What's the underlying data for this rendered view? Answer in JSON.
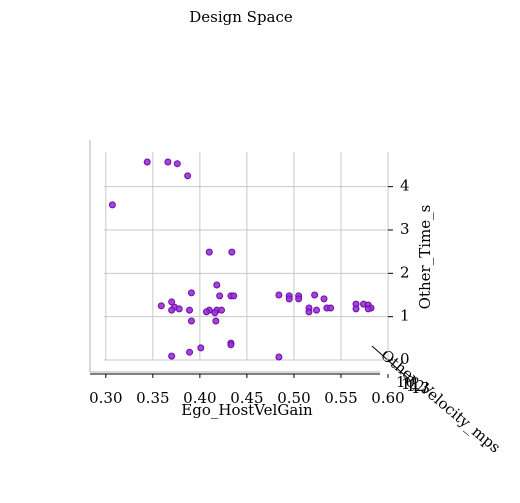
{
  "chart_data": {
    "type": "scatter",
    "title": "Design Space",
    "xlabel": "Ego_HostVelGain",
    "ylabel": "Other_Time_s",
    "depth_label": "Other_Velocity_mps",
    "color": "#9b30d0",
    "edgecolor": "#6a0dad",
    "grid": true,
    "xlim": [
      0.28,
      0.6
    ],
    "ylim": [
      0,
      4.8
    ],
    "xticks": [
      {
        "value": 0.3,
        "label": "0.30"
      },
      {
        "value": 0.35,
        "label": "0.35"
      },
      {
        "value": 0.4,
        "label": "0.40"
      },
      {
        "value": 0.45,
        "label": "0.45"
      },
      {
        "value": 0.5,
        "label": "0.50"
      },
      {
        "value": 0.55,
        "label": "0.55"
      },
      {
        "value": 0.6,
        "label": "0.60"
      }
    ],
    "yticks": [
      0,
      1,
      2,
      3,
      4
    ],
    "depth_ticks": [
      10,
      11,
      12,
      13
    ],
    "x": [
      0.344,
      0.366,
      0.376,
      0.387,
      0.307,
      0.41,
      0.434,
      0.418,
      0.391,
      0.421,
      0.433,
      0.436,
      0.359,
      0.37,
      0.373,
      0.378,
      0.389,
      0.37,
      0.41,
      0.418,
      0.423,
      0.407,
      0.416,
      0.391,
      0.417,
      0.433,
      0.433,
      0.401,
      0.389,
      0.37,
      0.484,
      0.484,
      0.495,
      0.495,
      0.505,
      0.505,
      0.522,
      0.532,
      0.516,
      0.516,
      0.524,
      0.535,
      0.539,
      0.566,
      0.566,
      0.574,
      0.579,
      0.582,
      0.579
    ],
    "y": [
      4.57,
      4.57,
      4.53,
      4.25,
      3.58,
      2.49,
      2.49,
      1.73,
      1.55,
      1.48,
      1.48,
      1.48,
      1.25,
      1.34,
      1.22,
      1.18,
      1.15,
      1.15,
      1.15,
      1.15,
      1.15,
      1.11,
      1.09,
      0.9,
      0.9,
      0.39,
      0.35,
      0.28,
      0.18,
      0.09,
      0.07,
      1.5,
      1.48,
      1.41,
      1.48,
      1.41,
      1.5,
      1.41,
      1.2,
      1.11,
      1.15,
      1.2,
      1.2,
      1.29,
      1.18,
      1.29,
      1.27,
      1.2,
      1.18
    ]
  }
}
